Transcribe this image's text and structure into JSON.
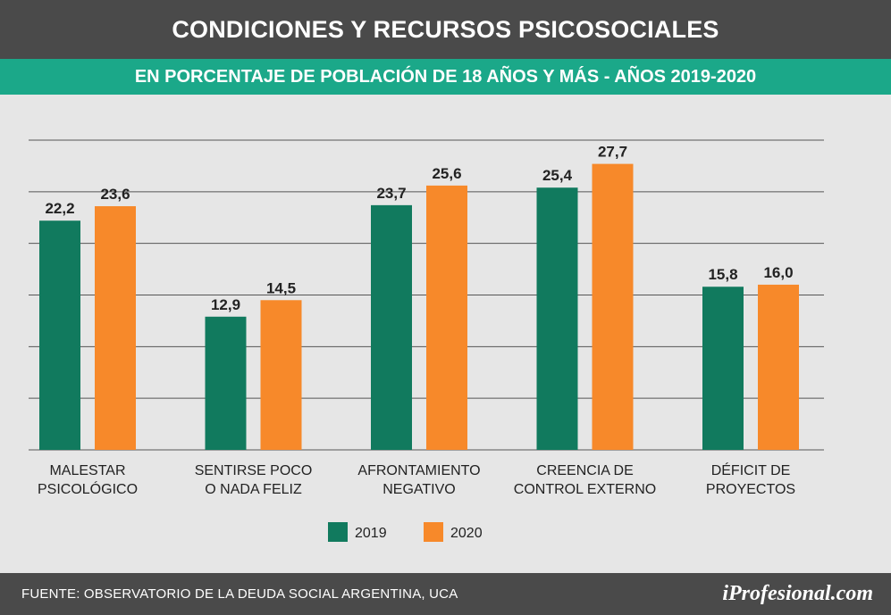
{
  "header": {
    "title": "CONDICIONES Y RECURSOS PSICOSOCIALES",
    "subtitle": "EN PORCENTAJE DE POBLACIÓN DE 18 AÑOS Y MÁS - AÑOS 2019-2020"
  },
  "footer": {
    "source": "FUENTE: OBSERVATORIO DE LA DEUDA SOCIAL ARGENTINA, UCA",
    "brand": "iProfesional.com"
  },
  "colors": {
    "series_2019": "#117a5e",
    "series_2020": "#f7892a",
    "title_bg": "#4a4a4a",
    "subtitle_bg": "#1ba889",
    "gridline": "#555555"
  },
  "chart_data": {
    "type": "bar",
    "title": "CONDICIONES Y RECURSOS PSICOSOCIALES",
    "subtitle": "EN PORCENTAJE DE POBLACIÓN DE 18 AÑOS Y MÁS - AÑOS 2019-2020",
    "categories": [
      [
        "MALESTAR",
        "PSICOLÓGICO"
      ],
      [
        "SENTIRSE POCO",
        "O NADA FELIZ"
      ],
      [
        "AFRONTAMIENTO",
        "NEGATIVO"
      ],
      [
        "CREENCIA DE",
        "CONTROL EXTERNO"
      ],
      [
        "DÉFICIT DE",
        "PROYECTOS"
      ]
    ],
    "series": [
      {
        "name": "2019",
        "values": [
          22.2,
          12.9,
          23.7,
          25.4,
          15.8
        ],
        "labels": [
          "22,2",
          "12,9",
          "23,7",
          "25,4",
          "15,8"
        ]
      },
      {
        "name": "2020",
        "values": [
          23.6,
          14.5,
          25.6,
          27.7,
          16.0
        ],
        "labels": [
          "23,6",
          "14,5",
          "25,6",
          "27,7",
          "16,0"
        ]
      }
    ],
    "ylim": [
      0,
      30
    ],
    "yticks": [
      0,
      5,
      10,
      15,
      20,
      25,
      30
    ],
    "grid": true,
    "legend": "bottom-center",
    "xlabel": "",
    "ylabel": ""
  }
}
